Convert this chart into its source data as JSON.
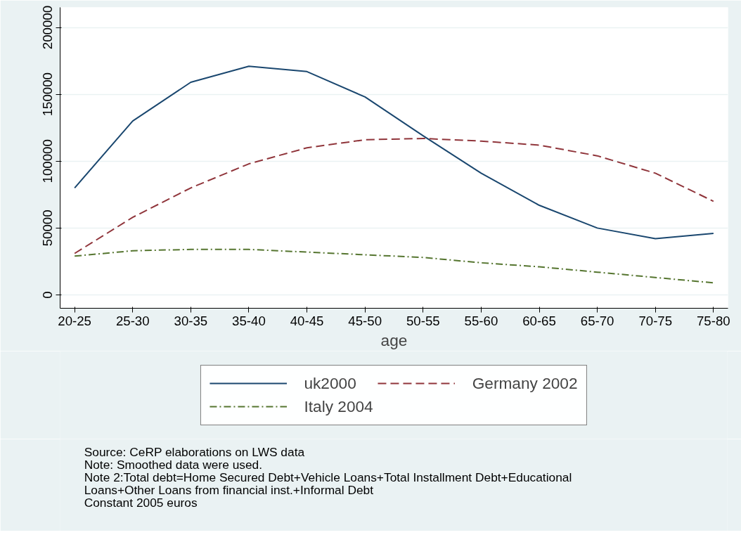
{
  "chart_data": {
    "type": "line",
    "xlabel": "age",
    "categories": [
      "20-25",
      "25-30",
      "30-35",
      "35-40",
      "40-45",
      "45-50",
      "50-55",
      "55-60",
      "60-65",
      "65-70",
      "70-75",
      "75-80"
    ],
    "series": [
      {
        "name": "uk2000",
        "color": "#1a476f",
        "line_style": "solid",
        "values": [
          80000,
          130000,
          159000,
          171000,
          167000,
          148000,
          119000,
          91000,
          67000,
          50000,
          42000,
          46000
        ]
      },
      {
        "name": "Germany 2002",
        "color": "#90353b",
        "line_style": "dashed",
        "values": [
          31000,
          58000,
          80000,
          98000,
          110000,
          116000,
          117000,
          115000,
          112000,
          104000,
          91000,
          70000
        ]
      },
      {
        "name": "Italy 2004",
        "color": "#55752f",
        "line_style": "dashdot",
        "values": [
          29000,
          33000,
          34000,
          34000,
          32000,
          30000,
          28000,
          24000,
          21000,
          17000,
          13000,
          9000
        ]
      }
    ],
    "ylim": [
      -10000,
      215000
    ],
    "yticks": [
      0,
      50000,
      100000,
      150000,
      200000
    ],
    "grid": "y",
    "legend": "bottom",
    "marker": "none",
    "annotations": [
      "Source: CeRP elaborations on LWS data",
      "Note: Smoothed data were used.",
      "Note 2:Total debt=Home Secured Debt+Vehicle Loans+Total Installment Debt+Educational",
      "Loans+Other Loans  from financial inst.+Informal Debt",
      "Constant 2005 euros"
    ]
  }
}
